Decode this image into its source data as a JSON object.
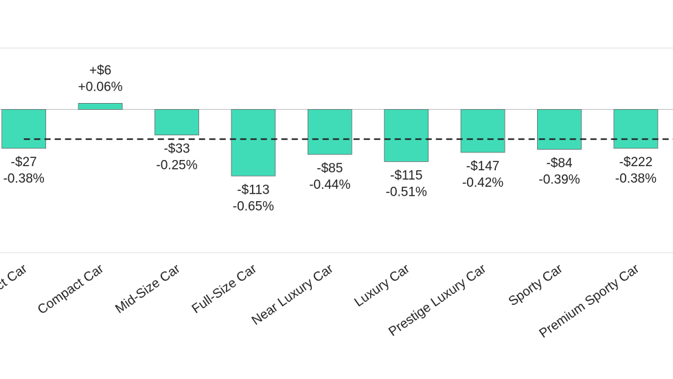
{
  "chart_data": {
    "type": "bar",
    "categories": [
      "Subcompact Car",
      "Compact Car",
      "Mid-Size Car",
      "Full-Size Car",
      "Near Luxury Car",
      "Luxury Car",
      "Prestige Luxury Car",
      "Sporty Car",
      "Premium Sporty Car"
    ],
    "values": [
      -0.38,
      0.06,
      -0.25,
      -0.65,
      -0.44,
      -0.51,
      -0.42,
      -0.39,
      -0.38
    ],
    "value_labels": [
      "-0.38%",
      "+0.06%",
      "-0.25%",
      "-0.65%",
      "-0.44%",
      "-0.51%",
      "-0.42%",
      "-0.39%",
      "-0.38%"
    ],
    "dollar_labels": [
      "-$27",
      "+$6",
      "-$33",
      "-$113",
      "-$85",
      "-$115",
      "-$147",
      "-$84",
      "-$222"
    ],
    "color": "#40dcb8",
    "reference_line": -0.29,
    "ylim": [
      -1.4,
      0.6
    ]
  }
}
